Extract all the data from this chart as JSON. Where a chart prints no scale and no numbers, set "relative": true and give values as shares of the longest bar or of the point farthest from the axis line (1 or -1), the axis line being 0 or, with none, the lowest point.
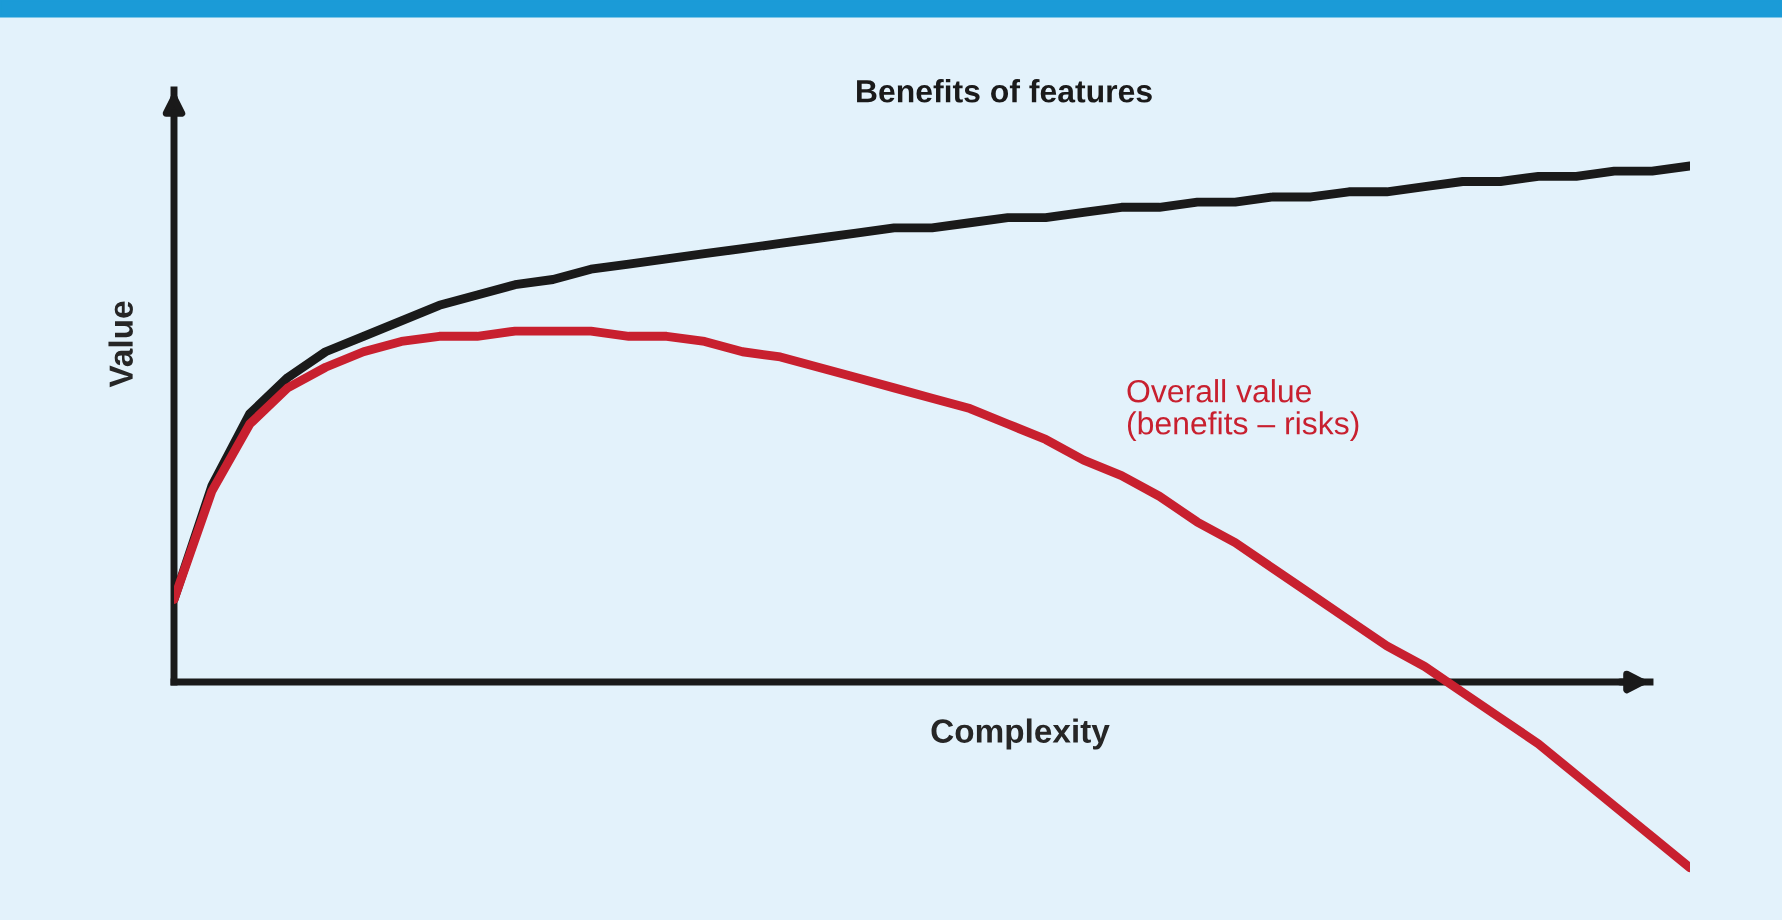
{
  "chart_data": {
    "type": "line",
    "relative": true,
    "xlabel": "Complexity",
    "ylabel": "Value",
    "legend": false,
    "categories": [
      null,
      null,
      null,
      null,
      null,
      null,
      null,
      null,
      null,
      null,
      null,
      null,
      null,
      null,
      null,
      null,
      null,
      null,
      null,
      null,
      null,
      null,
      null,
      null,
      null,
      null,
      null,
      null,
      null,
      null,
      null,
      null,
      null,
      null,
      null,
      null,
      null,
      null,
      null,
      null,
      null
    ],
    "series": [
      {
        "name": "Benefits of features",
        "color": "#1a1a1a",
        "values": [
          0.16,
          0.38,
          0.52,
          0.59,
          0.64,
          0.67,
          0.7,
          0.73,
          0.75,
          0.77,
          0.78,
          0.8,
          0.81,
          0.82,
          0.83,
          0.84,
          0.85,
          0.86,
          0.87,
          0.88,
          0.88,
          0.89,
          0.9,
          0.9,
          0.91,
          0.92,
          0.92,
          0.93,
          0.93,
          0.94,
          0.94,
          0.95,
          0.95,
          0.96,
          0.97,
          0.97,
          0.98,
          0.98,
          0.99,
          0.99,
          1.0
        ]
      },
      {
        "name": "Overall value\n(benefits – risks)",
        "color": "#c8202f",
        "values": [
          0.16,
          0.37,
          0.5,
          0.57,
          0.61,
          0.64,
          0.66,
          0.67,
          0.67,
          0.68,
          0.68,
          0.68,
          0.67,
          0.67,
          0.66,
          0.64,
          0.63,
          0.61,
          0.59,
          0.57,
          0.55,
          0.53,
          0.5,
          0.47,
          0.43,
          0.4,
          0.36,
          0.31,
          0.27,
          0.22,
          0.17,
          0.12,
          0.07,
          0.03,
          -0.02,
          -0.07,
          -0.12,
          -0.18,
          -0.24,
          -0.3,
          -0.36
        ]
      }
    ]
  }
}
